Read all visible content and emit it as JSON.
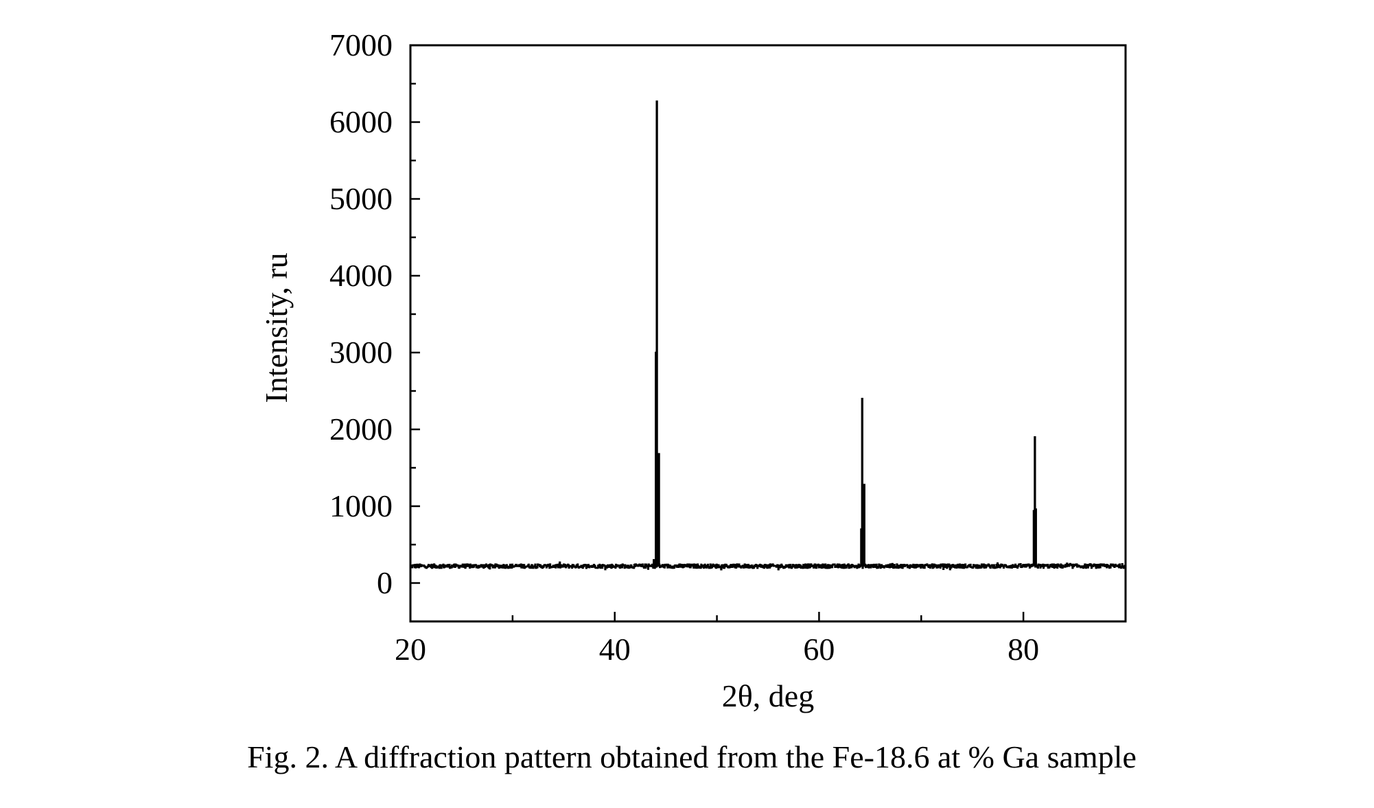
{
  "caption": "Fig. 2. A diffraction pattern obtained from the Fe-18.6 at % Ga sample",
  "chart_data": {
    "type": "line",
    "title": "",
    "xlabel": "2θ, deg",
    "ylabel": "Intensity, ru",
    "xlim": [
      20,
      90
    ],
    "ylim": [
      -500,
      7000
    ],
    "xticks": [
      20,
      40,
      60,
      80
    ],
    "yticks": [
      0,
      1000,
      2000,
      3000,
      4000,
      5000,
      6000,
      7000
    ],
    "grid": false,
    "legend": "none",
    "line_color": "#000000",
    "baseline": 220,
    "noise": 25,
    "peaks": [
      {
        "x": 43.8,
        "y": 300
      },
      {
        "x": 44.0,
        "y": 3000
      },
      {
        "x": 44.1,
        "y": 6270
      },
      {
        "x": 44.3,
        "y": 1680
      },
      {
        "x": 64.1,
        "y": 700
      },
      {
        "x": 64.2,
        "y": 2400
      },
      {
        "x": 64.4,
        "y": 1280
      },
      {
        "x": 81.0,
        "y": 940
      },
      {
        "x": 81.1,
        "y": 1900
      },
      {
        "x": 81.2,
        "y": 960
      }
    ]
  }
}
